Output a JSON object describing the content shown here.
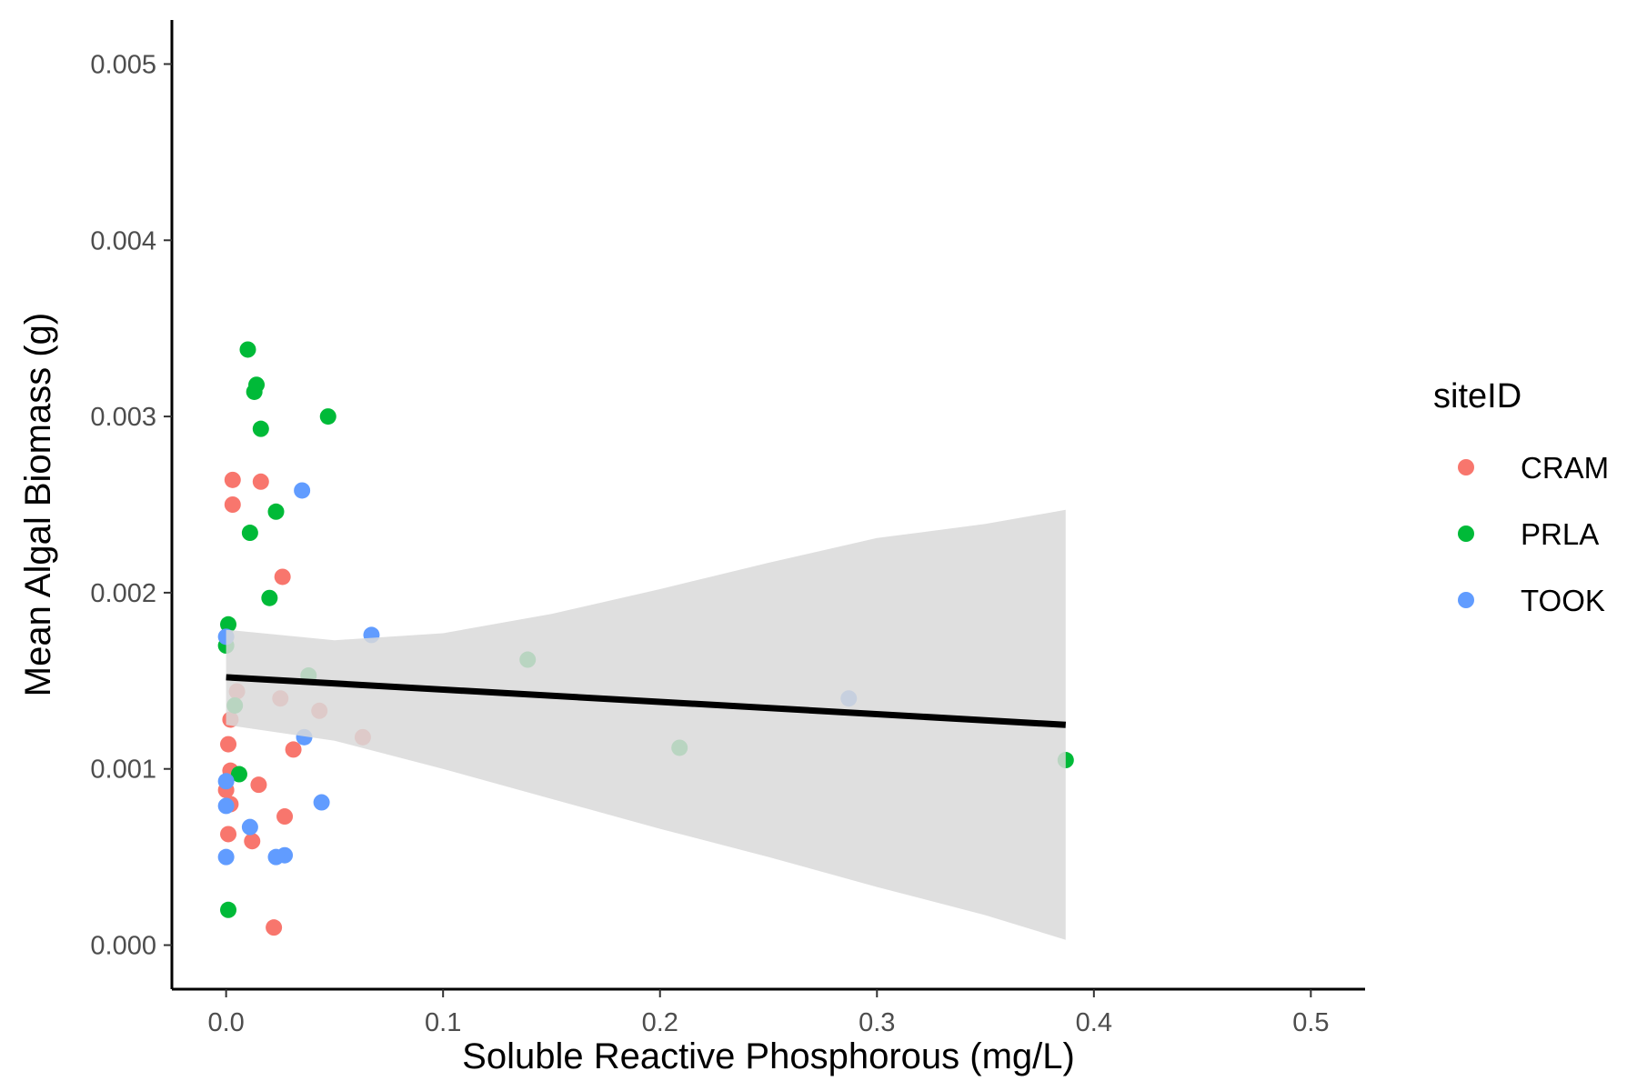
{
  "chart_data": {
    "type": "scatter",
    "title": "",
    "xlabel": "Soluble Reactive Phosphorous (mg/L)",
    "ylabel": "Mean Algal Biomass (g)",
    "xlim": [
      -0.025,
      0.525
    ],
    "ylim": [
      -0.00025,
      0.00525
    ],
    "x_ticks": [
      0.0,
      0.1,
      0.2,
      0.3,
      0.4,
      0.5
    ],
    "x_tick_labels": [
      "0.0",
      "0.1",
      "0.2",
      "0.3",
      "0.4",
      "0.5"
    ],
    "y_ticks": [
      0.0,
      0.001,
      0.002,
      0.003,
      0.004,
      0.005
    ],
    "y_tick_labels": [
      "0.000",
      "0.001",
      "0.002",
      "0.003",
      "0.004",
      "0.005"
    ],
    "grid": false,
    "legend": {
      "title": "siteID",
      "position": "right",
      "entries": [
        "CRAM",
        "PRLA",
        "TOOK"
      ]
    },
    "series": [
      {
        "name": "CRAM",
        "color": "#F8766D",
        "points": [
          [
            0.003,
            0.00264
          ],
          [
            0.016,
            0.00263
          ],
          [
            0.003,
            0.0025
          ],
          [
            0.026,
            0.00209
          ],
          [
            0.005,
            0.00144
          ],
          [
            0.025,
            0.0014
          ],
          [
            0.043,
            0.00133
          ],
          [
            0.002,
            0.00128
          ],
          [
            0.063,
            0.00118
          ],
          [
            0.001,
            0.00114
          ],
          [
            0.031,
            0.00111
          ],
          [
            0.002,
            0.00099
          ],
          [
            0.015,
            0.00091
          ],
          [
            0.0,
            0.00088
          ],
          [
            0.002,
            0.0008
          ],
          [
            0.027,
            0.00073
          ],
          [
            0.001,
            0.00063
          ],
          [
            0.012,
            0.00059
          ],
          [
            0.022,
            0.0001
          ]
        ]
      },
      {
        "name": "PRLA",
        "color": "#00BA38",
        "points": [
          [
            0.01,
            0.00338
          ],
          [
            0.014,
            0.00318
          ],
          [
            0.013,
            0.00314
          ],
          [
            0.047,
            0.003
          ],
          [
            0.016,
            0.00293
          ],
          [
            0.023,
            0.00246
          ],
          [
            0.011,
            0.00234
          ],
          [
            0.02,
            0.00197
          ],
          [
            0.001,
            0.00182
          ],
          [
            0.0,
            0.0017
          ],
          [
            0.139,
            0.00162
          ],
          [
            0.038,
            0.00153
          ],
          [
            0.004,
            0.00136
          ],
          [
            0.209,
            0.00112
          ],
          [
            0.387,
            0.00105
          ],
          [
            0.006,
            0.00097
          ],
          [
            0.001,
            0.0002
          ]
        ]
      },
      {
        "name": "TOOK",
        "color": "#619CFF",
        "points": [
          [
            0.035,
            0.00258
          ],
          [
            0.067,
            0.00176
          ],
          [
            0.0,
            0.00175
          ],
          [
            0.287,
            0.0014
          ],
          [
            0.036,
            0.00118
          ],
          [
            0.0,
            0.00093
          ],
          [
            0.044,
            0.00081
          ],
          [
            0.0,
            0.00079
          ],
          [
            0.011,
            0.00067
          ],
          [
            0.027,
            0.00051
          ],
          [
            0.023,
            0.0005
          ],
          [
            0.0,
            0.0005
          ]
        ]
      }
    ],
    "fit": {
      "type": "linear",
      "color": "#000000",
      "band_color": "#d9d9d9",
      "line": [
        [
          0.0,
          0.00152
        ],
        [
          0.387,
          0.00125
        ]
      ],
      "ci_upper": [
        [
          0.0,
          0.00179
        ],
        [
          0.05,
          0.00173
        ],
        [
          0.1,
          0.00177
        ],
        [
          0.15,
          0.00188
        ],
        [
          0.2,
          0.00202
        ],
        [
          0.25,
          0.00217
        ],
        [
          0.3,
          0.00231
        ],
        [
          0.35,
          0.00239
        ],
        [
          0.387,
          0.00247
        ]
      ],
      "ci_lower": [
        [
          0.0,
          0.00125
        ],
        [
          0.05,
          0.00116
        ],
        [
          0.1,
          0.001
        ],
        [
          0.15,
          0.00083
        ],
        [
          0.2,
          0.00066
        ],
        [
          0.25,
          0.0005
        ],
        [
          0.3,
          0.00033
        ],
        [
          0.35,
          0.00017
        ],
        [
          0.387,
          3e-05
        ]
      ]
    }
  }
}
